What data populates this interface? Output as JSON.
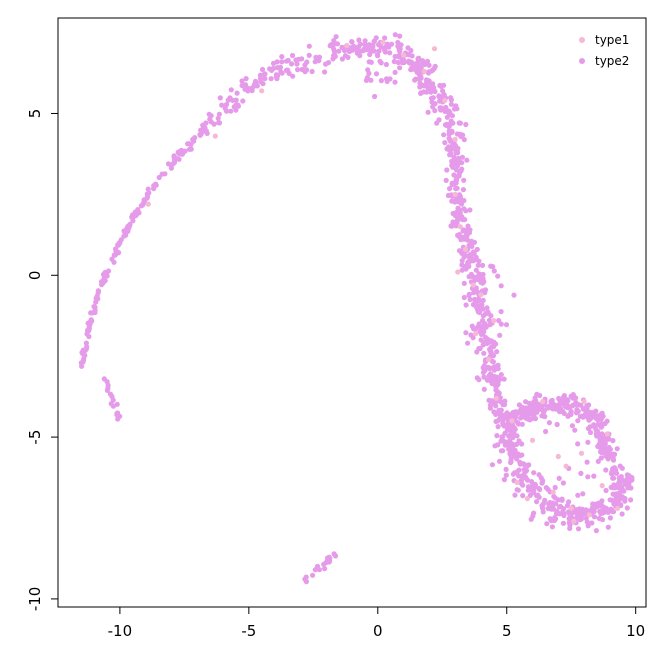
{
  "chart_data": {
    "type": "scatter",
    "title": "",
    "xlabel": "",
    "ylabel": "",
    "xlim": [
      -12.4,
      10.4
    ],
    "ylim": [
      -10.25,
      7.95
    ],
    "x_ticks": [
      {
        "value": -10,
        "label": "-10"
      },
      {
        "value": -5,
        "label": "-5"
      },
      {
        "value": 0,
        "label": "0"
      },
      {
        "value": 5,
        "label": "5"
      },
      {
        "value": 10,
        "label": "10"
      }
    ],
    "y_ticks": [
      {
        "value": -10,
        "label": "-10"
      },
      {
        "value": -5,
        "label": "-5"
      },
      {
        "value": 0,
        "label": "0"
      },
      {
        "value": 5,
        "label": "5"
      }
    ],
    "grid": false,
    "legend_position": "top-right",
    "series": [
      {
        "name": "type1",
        "color": "#f6b8d4",
        "points": [
          [
            -1.2,
            7.1
          ],
          [
            0.2,
            7.2
          ],
          [
            1.0,
            6.8
          ],
          [
            1.8,
            6.3
          ],
          [
            2.6,
            5.4
          ],
          [
            3.0,
            4.2
          ],
          [
            3.0,
            2.5
          ],
          [
            3.2,
            1.5
          ],
          [
            3.4,
            0.8
          ],
          [
            3.1,
            0.1
          ],
          [
            4.0,
            -0.6
          ],
          [
            3.8,
            -1.8
          ],
          [
            4.3,
            -2.6
          ],
          [
            4.6,
            -3.8
          ],
          [
            5.2,
            -4.5
          ],
          [
            6.0,
            -5.1
          ],
          [
            5.4,
            -6.4
          ],
          [
            7.0,
            -5.6
          ],
          [
            7.3,
            -5.9
          ],
          [
            7.9,
            -5.5
          ],
          [
            6.8,
            -6.7
          ],
          [
            7.5,
            -7.2
          ],
          [
            8.7,
            -6.5
          ],
          [
            8.2,
            -7.4
          ],
          [
            9.3,
            -7.2
          ],
          [
            7.6,
            -7.6
          ],
          [
            8.9,
            -4.9
          ],
          [
            2.2,
            7.0
          ],
          [
            -4.5,
            5.7
          ],
          [
            -6.3,
            4.3
          ],
          [
            -8.9,
            2.2
          ],
          [
            6.4,
            -3.9
          ],
          [
            3.7,
            -0.3
          ],
          [
            4.5,
            -1.4
          ],
          [
            5.8,
            -6.9
          ],
          [
            8.0,
            -3.9
          ]
        ]
      },
      {
        "name": "type2",
        "color": "#e59bea",
        "arc": [
          [
            -11.5,
            -2.9
          ],
          [
            -11.3,
            -2.0
          ],
          [
            -11.0,
            -1.0
          ],
          [
            -10.6,
            0.0
          ],
          [
            -10.0,
            1.0
          ],
          [
            -9.3,
            2.0
          ],
          [
            -8.5,
            3.0
          ],
          [
            -7.6,
            3.8
          ],
          [
            -6.6,
            4.6
          ],
          [
            -5.5,
            5.4
          ],
          [
            -4.3,
            6.1
          ],
          [
            -3.0,
            6.6
          ],
          [
            -1.5,
            7.0
          ],
          [
            -0.3,
            7.1
          ],
          [
            0.8,
            6.9
          ],
          [
            1.6,
            6.4
          ],
          [
            2.1,
            5.8
          ],
          [
            2.6,
            5.1
          ],
          [
            2.9,
            4.2
          ],
          [
            3.0,
            3.2
          ],
          [
            3.1,
            2.3
          ],
          [
            3.3,
            1.4
          ],
          [
            3.5,
            0.6
          ],
          [
            3.8,
            -0.3
          ],
          [
            4.0,
            -1.2
          ],
          [
            4.2,
            -2.1
          ],
          [
            4.4,
            -3.0
          ],
          [
            4.6,
            -3.8
          ],
          [
            4.8,
            -4.6
          ],
          [
            5.1,
            -5.4
          ],
          [
            5.6,
            -6.2
          ],
          [
            6.3,
            -6.9
          ],
          [
            7.0,
            -7.3
          ],
          [
            7.8,
            -7.4
          ],
          [
            8.6,
            -7.3
          ],
          [
            9.3,
            -7.1
          ],
          [
            9.6,
            -6.5
          ],
          [
            9.0,
            -5.8
          ],
          [
            8.7,
            -5.1
          ],
          [
            8.4,
            -4.4
          ],
          [
            7.6,
            -4.0
          ],
          [
            6.8,
            -4.0
          ],
          [
            6.0,
            -4.1
          ],
          [
            5.4,
            -4.3
          ],
          [
            5.0,
            -4.5
          ]
        ],
        "arc_spread": [
          0.08,
          0.08,
          0.08,
          0.08,
          0.08,
          0.08,
          0.1,
          0.15,
          0.22,
          0.28,
          0.3,
          0.3,
          0.28,
          0.26,
          0.3,
          0.4,
          0.42,
          0.38,
          0.32,
          0.28,
          0.3,
          0.32,
          0.35,
          0.35,
          0.35,
          0.35,
          0.32,
          0.3,
          0.35,
          0.4,
          0.42,
          0.42,
          0.4,
          0.38,
          0.36,
          0.3,
          0.3,
          0.32,
          0.3,
          0.3,
          0.25,
          0.22,
          0.22,
          0.25,
          0.28
        ],
        "arc_density": [
          6,
          6,
          6,
          6,
          6,
          6,
          6,
          7,
          8,
          9,
          10,
          11,
          12,
          12,
          13,
          13,
          13,
          12,
          11,
          11,
          11,
          11,
          11,
          11,
          11,
          11,
          11,
          11,
          12,
          12,
          12,
          12,
          12,
          12,
          12,
          12,
          12,
          12,
          12,
          12,
          11,
          11,
          11,
          11,
          11
        ],
        "extra_groups": [
          {
            "from": [
              -10.6,
              -3.1
            ],
            "to": [
              -10.0,
              -4.6
            ],
            "count": 16,
            "spread": 0.05
          },
          {
            "from": [
              -2.8,
              -9.4
            ],
            "to": [
              -1.6,
              -8.6
            ],
            "count": 18,
            "spread": 0.05
          },
          {
            "center": [
              6.9,
              -5.3
            ],
            "radius": [
              1.4,
              1.1
            ],
            "count": 40,
            "spread": 0.25
          },
          {
            "center": [
              1.0,
              6.3
            ],
            "radius": [
              1.2,
              0.5
            ],
            "count": 30,
            "spread": 0.25
          },
          {
            "center": [
              4.2,
              -1.0
            ],
            "radius": [
              0.6,
              1.3
            ],
            "count": 30,
            "spread": 0.2
          }
        ]
      }
    ]
  }
}
